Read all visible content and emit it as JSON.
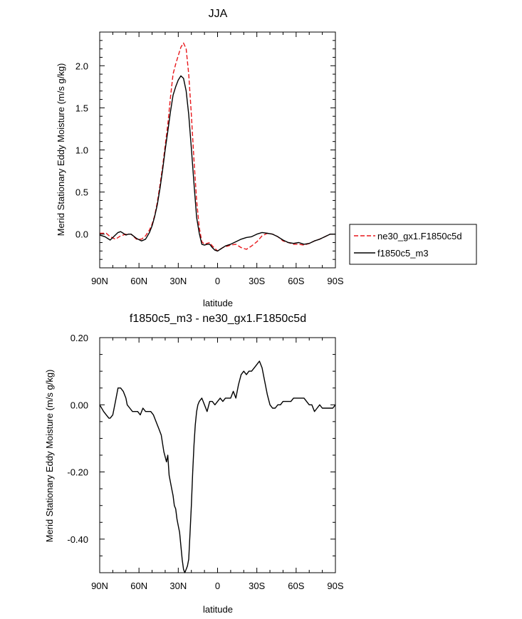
{
  "chart_data": [
    {
      "type": "line",
      "title": "JJA",
      "xlabel": "latitude",
      "ylabel": "Merid Stationary Eddy Moisture (m/s g/kg)",
      "xlim": [
        90,
        -90
      ],
      "ylim": [
        -0.4,
        2.4
      ],
      "x_ticks": [
        90,
        60,
        30,
        0,
        -30,
        -60,
        -90
      ],
      "x_tick_labels": [
        "90N",
        "60N",
        "30N",
        "0",
        "30S",
        "60S",
        "90S"
      ],
      "y_ticks": [
        0.0,
        0.5,
        1.0,
        1.5,
        2.0
      ],
      "y_tick_labels": [
        "0.0",
        "0.5",
        "1.0",
        "1.5",
        "2.0"
      ],
      "legend_position": "right-outside",
      "series": [
        {
          "name": "ne30_gx1.F1850c5d",
          "color": "#e8171b",
          "dash": "dashed",
          "x": [
            90,
            85,
            82,
            78,
            74,
            70,
            66,
            62,
            58,
            55,
            52,
            50,
            48,
            46,
            44,
            42,
            40,
            38,
            36,
            34,
            32,
            30,
            28,
            26,
            24,
            22,
            20,
            18,
            16,
            14,
            12,
            10,
            8,
            6,
            4,
            2,
            0,
            -2,
            -4,
            -6,
            -8,
            -10,
            -14,
            -18,
            -22,
            -26,
            -30,
            -34,
            -38,
            -42,
            -46,
            -50,
            -54,
            -58,
            -62,
            -66,
            -70,
            -74,
            -78,
            -82,
            -86,
            -90
          ],
          "y": [
            0.01,
            0.01,
            -0.03,
            -0.06,
            -0.02,
            0.0,
            0.0,
            -0.06,
            -0.06,
            -0.02,
            0.05,
            0.12,
            0.22,
            0.38,
            0.58,
            0.8,
            1.05,
            1.3,
            1.62,
            1.9,
            2.02,
            2.12,
            2.22,
            2.27,
            2.2,
            1.9,
            1.42,
            0.88,
            0.4,
            0.08,
            -0.09,
            -0.12,
            -0.11,
            -0.1,
            -0.14,
            -0.17,
            -0.2,
            -0.18,
            -0.16,
            -0.15,
            -0.14,
            -0.13,
            -0.12,
            -0.16,
            -0.18,
            -0.14,
            -0.09,
            -0.02,
            0.01,
            0.0,
            -0.03,
            -0.08,
            -0.1,
            -0.12,
            -0.12,
            -0.13,
            -0.11,
            -0.08,
            -0.06,
            -0.03,
            0.0,
            0.0
          ]
        },
        {
          "name": "f1850c5_m3",
          "color": "#000000",
          "dash": "solid",
          "x": [
            90,
            86,
            82,
            78,
            76,
            74,
            72,
            70,
            68,
            66,
            62,
            58,
            55,
            52,
            50,
            48,
            46,
            44,
            42,
            40,
            38,
            36,
            34,
            32,
            30,
            28,
            26,
            24,
            22,
            20,
            18,
            16,
            14,
            12,
            10,
            8,
            6,
            4,
            2,
            0,
            -2,
            -4,
            -6,
            -8,
            -10,
            -14,
            -18,
            -22,
            -26,
            -30,
            -34,
            -38,
            -42,
            -46,
            -50,
            -54,
            -58,
            -62,
            -66,
            -70,
            -74,
            -78,
            -82,
            -86,
            -90
          ],
          "y": [
            -0.01,
            -0.03,
            -0.07,
            -0.01,
            0.02,
            0.03,
            0.01,
            -0.01,
            0.0,
            0.0,
            -0.05,
            -0.08,
            -0.06,
            0.02,
            0.1,
            0.21,
            0.35,
            0.54,
            0.76,
            1.0,
            1.22,
            1.45,
            1.65,
            1.75,
            1.83,
            1.88,
            1.85,
            1.7,
            1.42,
            1.02,
            0.6,
            0.2,
            0.01,
            -0.12,
            -0.13,
            -0.12,
            -0.12,
            -0.16,
            -0.19,
            -0.2,
            -0.18,
            -0.16,
            -0.14,
            -0.13,
            -0.12,
            -0.09,
            -0.06,
            -0.04,
            -0.03,
            0.0,
            0.02,
            0.01,
            0.0,
            -0.03,
            -0.07,
            -0.1,
            -0.11,
            -0.1,
            -0.12,
            -0.11,
            -0.08,
            -0.06,
            -0.03,
            0.0,
            0.0
          ]
        }
      ]
    },
    {
      "type": "line",
      "title": "f1850c5_m3 - ne30_gx1.F1850c5d",
      "xlabel": "latitude",
      "ylabel": "Merid Stationary Eddy Moisture (m/s g/kg)",
      "xlim": [
        90,
        -90
      ],
      "ylim": [
        -0.5,
        0.2
      ],
      "x_ticks": [
        90,
        60,
        30,
        0,
        -30,
        -60,
        -90
      ],
      "x_tick_labels": [
        "90N",
        "60N",
        "30N",
        "0",
        "30S",
        "60S",
        "90S"
      ],
      "y_ticks": [
        0.2,
        0.0,
        -0.2,
        -0.4
      ],
      "y_tick_labels": [
        "0.20",
        "0.00",
        "-0.20",
        "-0.40"
      ],
      "series": [
        {
          "name": "",
          "color": "#000000",
          "dash": "solid",
          "x": [
            90,
            87,
            85,
            83,
            82,
            80,
            78,
            76,
            74,
            72,
            70,
            69,
            67,
            65,
            63,
            61,
            59,
            57,
            55,
            53,
            51,
            49,
            47,
            45,
            43,
            41,
            39,
            38,
            37,
            35,
            34,
            33,
            32,
            31,
            30,
            29,
            28,
            27,
            26,
            25,
            24,
            23,
            22,
            21,
            20,
            19,
            18,
            17,
            16,
            15,
            14,
            12,
            11,
            10,
            8,
            6,
            4,
            2,
            0,
            -2,
            -4,
            -6,
            -8,
            -10,
            -12,
            -14,
            -16,
            -18,
            -20,
            -22,
            -24,
            -26,
            -28,
            -30,
            -32,
            -34,
            -36,
            -38,
            -40,
            -42,
            -44,
            -46,
            -48,
            -50,
            -52,
            -54,
            -56,
            -58,
            -60,
            -62,
            -64,
            -66,
            -68,
            -70,
            -72,
            -74,
            -76,
            -78,
            -80,
            -82,
            -84,
            -86,
            -88,
            -90
          ],
          "y": [
            0.0,
            -0.02,
            -0.03,
            -0.04,
            -0.04,
            -0.03,
            0.01,
            0.05,
            0.05,
            0.04,
            0.02,
            0.0,
            -0.01,
            -0.02,
            -0.02,
            -0.02,
            -0.03,
            -0.01,
            -0.02,
            -0.02,
            -0.02,
            -0.03,
            -0.05,
            -0.07,
            -0.09,
            -0.14,
            -0.17,
            -0.15,
            -0.21,
            -0.25,
            -0.27,
            -0.3,
            -0.31,
            -0.34,
            -0.36,
            -0.38,
            -0.42,
            -0.46,
            -0.49,
            -0.5,
            -0.49,
            -0.48,
            -0.46,
            -0.38,
            -0.3,
            -0.2,
            -0.12,
            -0.06,
            -0.02,
            0.0,
            0.01,
            0.02,
            0.01,
            0.0,
            -0.02,
            0.01,
            0.01,
            0.0,
            0.01,
            0.02,
            0.01,
            0.02,
            0.02,
            0.02,
            0.04,
            0.02,
            0.06,
            0.09,
            0.1,
            0.09,
            0.1,
            0.1,
            0.11,
            0.12,
            0.13,
            0.11,
            0.07,
            0.03,
            0.0,
            -0.01,
            -0.01,
            0.0,
            0.0,
            0.01,
            0.01,
            0.01,
            0.01,
            0.02,
            0.02,
            0.02,
            0.02,
            0.02,
            0.01,
            0.0,
            0.0,
            -0.02,
            -0.01,
            0.0,
            -0.01,
            -0.01,
            -0.01,
            -0.01,
            -0.01,
            0.0
          ]
        }
      ]
    }
  ]
}
